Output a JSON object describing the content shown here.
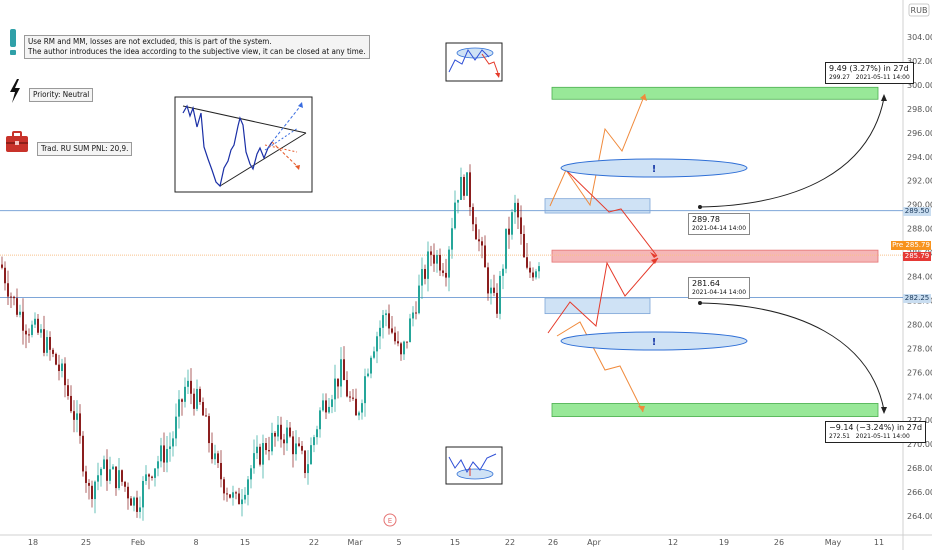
{
  "currency_label": "RUB",
  "notes": {
    "warning_line1": "Use RM and MM, losses are not excluded, this is part of the system.",
    "warning_line2": "The author introduces the idea according to the subjective view, it can be closed at any time.",
    "priority": "Priority: Neutral",
    "pnl": "Trad. RU SUM PNL: 20,9."
  },
  "callouts": {
    "upper_target": {
      "line1": "9.49 (3.27%) in 27d",
      "price": "299.27",
      "date": "2021-05-11  14:00"
    },
    "lower_target": {
      "line1": "−9.14 (−3.24%) in 27d",
      "price": "272.51",
      "date": "2021-05-11  14:00"
    },
    "upper_start": {
      "price": "289.78",
      "date": "2021-04-14 14:00"
    },
    "lower_start": {
      "price": "281.64",
      "date": "2021-04-14 14:00"
    }
  },
  "price_tags": {
    "resistance": {
      "label": "289.50",
      "color": "#c9ddf0",
      "text_color": "#1a3a5c"
    },
    "pre_market": {
      "label": "285.79",
      "prefix": "Pre",
      "color": "#f7931e"
    },
    "last": {
      "label": "285.79",
      "color": "#e53935"
    },
    "support": {
      "label": "282.25",
      "color": "#c9ddf0",
      "text_color": "#1a3a5c"
    }
  },
  "markers": {
    "exclaim": "!",
    "earnings": "E"
  },
  "colors": {
    "up": "#26a69a",
    "down": "#8b1e1e",
    "level": "#7ea6d8",
    "zone_green": "#98e898",
    "zone_red": "#f5b6b6",
    "zone_blue": "#cfe2f5",
    "path_orange": "#f08a3c",
    "path_red": "#e53a2a"
  },
  "chart_data": {
    "type": "candlestick",
    "y_axis": {
      "min": 263,
      "max": 305,
      "ticks": [
        264,
        266,
        268,
        270,
        272,
        274,
        276,
        278,
        280,
        282,
        284,
        286,
        288,
        290,
        292,
        294,
        296,
        298,
        300,
        302,
        304
      ]
    },
    "x_axis_labels": [
      "18",
      "25",
      "Feb",
      "8",
      "15",
      "22",
      "Mar",
      "5",
      "15",
      "22",
      "26",
      "Apr",
      "12",
      "19",
      "26",
      "May",
      "11"
    ],
    "levels": [
      289.5,
      282.25
    ],
    "last_price": 285.79,
    "zones": [
      {
        "kind": "target-up",
        "from": 298.8,
        "to": 299.8
      },
      {
        "kind": "target-down",
        "from": 272.3,
        "to": 273.4
      },
      {
        "kind": "pivot",
        "from": 285.2,
        "to": 286.2
      },
      {
        "kind": "upper-range",
        "from": 289.3,
        "to": 290.5
      },
      {
        "kind": "lower-range",
        "from": 280.9,
        "to": 282.2
      }
    ],
    "projections": {
      "upper_start": 289.78,
      "upper_end": 299.27,
      "upper_change": "9.49 (3.27%)",
      "lower_start": 281.64,
      "lower_end": 272.51,
      "lower_change": "−9.14 (−3.24%)",
      "days": 27
    }
  }
}
